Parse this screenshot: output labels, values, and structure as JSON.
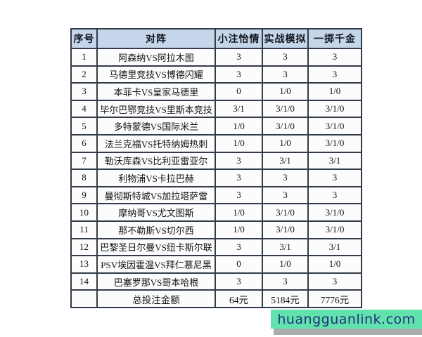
{
  "table": {
    "columns": [
      "序号",
      "对阵",
      "小注怡情",
      "实战模拟",
      "一掷千金"
    ],
    "rows": [
      [
        "1",
        "阿森纳VS阿拉木图",
        "3",
        "3",
        "3"
      ],
      [
        "2",
        "马德里竞技VS博德闪耀",
        "3",
        "3",
        "3"
      ],
      [
        "3",
        "本菲卡VS皇家马德里",
        "0",
        "1/0",
        "1/0"
      ],
      [
        "4",
        "毕尔巴鄂竞技VS里斯本竞技",
        "3/1",
        "3/1/0",
        "3/1/0"
      ],
      [
        "5",
        "多特蒙德VS国际米兰",
        "1/0",
        "3/1/0",
        "3/1/0"
      ],
      [
        "6",
        "法兰克福VS托特纳姆热刺",
        "1/0",
        "1/0",
        "3/1/0"
      ],
      [
        "7",
        "勒沃库森VS比利亚雷亚尔",
        "3",
        "3/1",
        "3/1"
      ],
      [
        "8",
        "利物浦VS卡拉巴赫",
        "3",
        "3",
        "3"
      ],
      [
        "9",
        "曼彻斯特城VS加拉塔萨雷",
        "3",
        "3",
        "3"
      ],
      [
        "10",
        "摩纳哥VS尤文图斯",
        "1/0",
        "3/1/0",
        "3/1/0"
      ],
      [
        "11",
        "那不勒斯VS切尔西",
        "1/0",
        "3/1/0",
        "3/1/0"
      ],
      [
        "12",
        "巴黎圣日尔曼VS纽卡斯尔联",
        "3",
        "3/1",
        "3/1"
      ],
      [
        "13",
        "PSV埃因霍温VS拜仁慕尼黑",
        "0",
        "1/0",
        "1/0"
      ],
      [
        "14",
        "巴塞罗那VS哥本哈根",
        "3",
        "3",
        "3"
      ]
    ],
    "footer": [
      "",
      "总投注金额",
      "64元",
      "5184元",
      "7776元"
    ]
  },
  "watermark": {
    "text": "huangguanlink.com"
  },
  "colors": {
    "header_bg": "#c6d6ea",
    "border": "#323b49",
    "cell_bg": "#fcfcfc",
    "watermark_bg": "#61e2ad",
    "watermark_text": "#252f7b"
  }
}
